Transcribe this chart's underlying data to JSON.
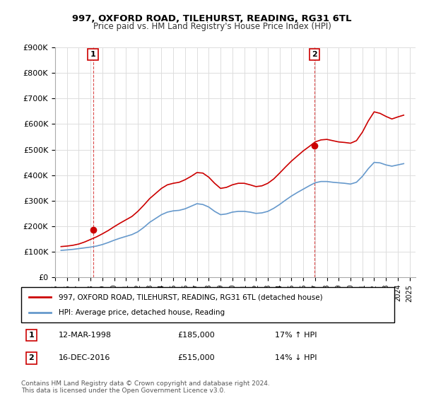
{
  "title": "997, OXFORD ROAD, TILEHURST, READING, RG31 6TL",
  "subtitle": "Price paid vs. HM Land Registry's House Price Index (HPI)",
  "ylabel_prefix": "£",
  "ylim": [
    0,
    900000
  ],
  "yticks": [
    0,
    100000,
    200000,
    300000,
    400000,
    500000,
    600000,
    700000,
    800000,
    900000
  ],
  "ytick_labels": [
    "£0",
    "£100K",
    "£200K",
    "£300K",
    "£400K",
    "£500K",
    "£600K",
    "£700K",
    "£800K",
    "£900K"
  ],
  "xlim_start": 1995.5,
  "xlim_end": 2025.5,
  "transaction1": {
    "date": "12-MAR-1998",
    "price": 185000,
    "label": "1",
    "year": 1998.2,
    "hpi_pct": "17% ↑ HPI"
  },
  "transaction2": {
    "date": "16-DEC-2016",
    "price": 515000,
    "label": "2",
    "year": 2016.96,
    "hpi_pct": "14% ↓ HPI"
  },
  "property_color": "#cc0000",
  "hpi_color": "#6699cc",
  "dashed_line_color": "#cc0000",
  "legend_property_label": "997, OXFORD ROAD, TILEHURST, READING, RG31 6TL (detached house)",
  "legend_hpi_label": "HPI: Average price, detached house, Reading",
  "note1_label": "1",
  "note1_date": "12-MAR-1998",
  "note1_price": "£185,000",
  "note1_hpi": "17% ↑ HPI",
  "note2_label": "2",
  "note2_date": "16-DEC-2016",
  "note2_price": "£515,000",
  "note2_hpi": "14% ↓ HPI",
  "copyright_text": "Contains HM Land Registry data © Crown copyright and database right 2024.\nThis data is licensed under the Open Government Licence v3.0.",
  "hpi_data_x": [
    1995.5,
    1996,
    1996.5,
    1997,
    1997.5,
    1998,
    1998.5,
    1999,
    1999.5,
    2000,
    2000.5,
    2001,
    2001.5,
    2002,
    2002.5,
    2003,
    2003.5,
    2004,
    2004.5,
    2005,
    2005.5,
    2006,
    2006.5,
    2007,
    2007.5,
    2008,
    2008.5,
    2009,
    2009.5,
    2010,
    2010.5,
    2011,
    2011.5,
    2012,
    2012.5,
    2013,
    2013.5,
    2014,
    2014.5,
    2015,
    2015.5,
    2016,
    2016.5,
    2017,
    2017.5,
    2018,
    2018.5,
    2019,
    2019.5,
    2020,
    2020.5,
    2021,
    2021.5,
    2022,
    2022.5,
    2023,
    2023.5,
    2024,
    2024.5
  ],
  "hpi_data_y": [
    105000,
    107000,
    109000,
    112000,
    115000,
    118000,
    122000,
    128000,
    136000,
    145000,
    153000,
    160000,
    167000,
    178000,
    195000,
    215000,
    230000,
    245000,
    255000,
    260000,
    262000,
    268000,
    278000,
    288000,
    285000,
    275000,
    258000,
    245000,
    248000,
    255000,
    258000,
    258000,
    255000,
    250000,
    252000,
    258000,
    270000,
    285000,
    302000,
    318000,
    332000,
    345000,
    358000,
    370000,
    375000,
    375000,
    372000,
    370000,
    368000,
    365000,
    372000,
    395000,
    425000,
    450000,
    448000,
    440000,
    435000,
    440000,
    445000
  ],
  "property_data_x": [
    1995.5,
    1996,
    1996.5,
    1997,
    1997.5,
    1998,
    1998.5,
    1999,
    1999.5,
    2000,
    2000.5,
    2001,
    2001.5,
    2002,
    2002.5,
    2003,
    2003.5,
    2004,
    2004.5,
    2005,
    2005.5,
    2006,
    2006.5,
    2007,
    2007.5,
    2008,
    2008.5,
    2009,
    2009.5,
    2010,
    2010.5,
    2011,
    2011.5,
    2012,
    2012.5,
    2013,
    2013.5,
    2014,
    2014.5,
    2015,
    2015.5,
    2016,
    2016.5,
    2017,
    2017.5,
    2018,
    2018.5,
    2019,
    2019.5,
    2020,
    2020.5,
    2021,
    2021.5,
    2022,
    2022.5,
    2023,
    2023.5,
    2024,
    2024.5
  ],
  "property_data_y": [
    120000,
    122000,
    125000,
    130000,
    138000,
    148000,
    158000,
    170000,
    183000,
    198000,
    212000,
    225000,
    238000,
    258000,
    282000,
    308000,
    328000,
    348000,
    362000,
    368000,
    372000,
    382000,
    395000,
    410000,
    408000,
    392000,
    368000,
    348000,
    352000,
    362000,
    368000,
    368000,
    362000,
    355000,
    358000,
    368000,
    385000,
    408000,
    432000,
    455000,
    475000,
    495000,
    512000,
    530000,
    538000,
    540000,
    535000,
    530000,
    528000,
    525000,
    535000,
    568000,
    612000,
    648000,
    642000,
    630000,
    620000,
    628000,
    635000
  ],
  "xtick_years": [
    1995,
    1996,
    1997,
    1998,
    1999,
    2000,
    2001,
    2002,
    2003,
    2004,
    2005,
    2006,
    2007,
    2008,
    2009,
    2010,
    2011,
    2012,
    2013,
    2014,
    2015,
    2016,
    2017,
    2018,
    2019,
    2020,
    2021,
    2022,
    2023,
    2024,
    2025
  ],
  "bg_color": "#ffffff",
  "grid_color": "#dddddd"
}
